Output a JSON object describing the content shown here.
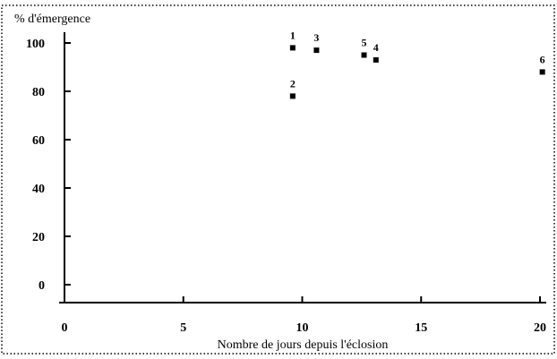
{
  "chart_data": {
    "type": "scatter",
    "title": "",
    "ylabel": "% d'émergence",
    "xlabel": "Nombre de jours depuis l'éclosion",
    "xlim": [
      0,
      20
    ],
    "ylim": [
      0,
      100
    ],
    "xticks": [
      0,
      5,
      10,
      15,
      20
    ],
    "yticks": [
      0,
      20,
      40,
      60,
      80,
      100
    ],
    "grid": false,
    "points": [
      {
        "label": "1",
        "x": 9.6,
        "y": 98
      },
      {
        "label": "2",
        "x": 9.6,
        "y": 78
      },
      {
        "label": "3",
        "x": 10.6,
        "y": 97
      },
      {
        "label": "5",
        "x": 12.6,
        "y": 95
      },
      {
        "label": "4",
        "x": 13.1,
        "y": 93
      },
      {
        "label": "6",
        "x": 20.1,
        "y": 88
      }
    ]
  }
}
